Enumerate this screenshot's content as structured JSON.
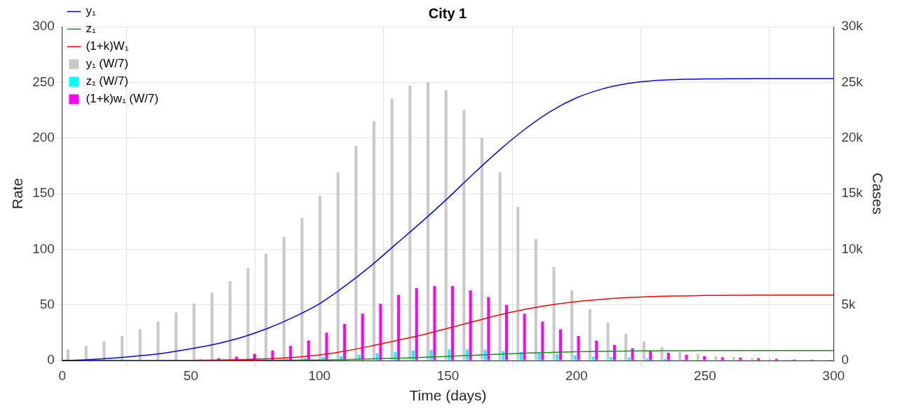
{
  "chart_data": {
    "type": "bar",
    "title": "City 1",
    "x_label": "Time (days)",
    "y_label": "Rate",
    "y2_label": "Cases",
    "xlim": [
      0,
      300
    ],
    "xticks": [
      0,
      50,
      100,
      150,
      200,
      250,
      300
    ],
    "ylim": [
      0,
      300
    ],
    "yticks": [
      0,
      50,
      100,
      150,
      200,
      250,
      300
    ],
    "y2lim": [
      0,
      30000
    ],
    "y2ticks": [
      {
        "value": 0,
        "label": "0"
      },
      {
        "value": 5000,
        "label": "5k"
      },
      {
        "value": 10000,
        "label": "10k"
      },
      {
        "value": 15000,
        "label": "15k"
      },
      {
        "value": 20000,
        "label": "20k"
      },
      {
        "value": 25000,
        "label": "25k"
      },
      {
        "value": 30000,
        "label": "30k"
      }
    ],
    "grid": true,
    "legend": "upper left",
    "series": [
      {
        "name": "y₁ (W/7)",
        "type": "bar",
        "color": "#c8c8c8",
        "x": [
          3.5,
          10.5,
          17.5,
          24.5,
          31.5,
          38.5,
          45.5,
          52.5,
          59.5,
          66.5,
          73.5,
          80.5,
          87.5,
          94.5,
          101.5,
          108.5,
          115.5,
          122.5,
          129.5,
          136.5,
          143.5,
          150.5,
          157.5,
          164.5,
          171.5,
          178.5,
          185.5,
          192.5,
          199.5,
          206.5,
          213.5,
          220.5,
          227.5,
          234.5,
          241.5,
          248.5,
          255.5,
          262.5,
          269.5,
          276.5,
          283.5,
          290.5,
          297.5
        ],
        "values": [
          10,
          13,
          17,
          22,
          28,
          35,
          43,
          51,
          61,
          71,
          83,
          96,
          111,
          128,
          148,
          169,
          193,
          215,
          235,
          247,
          250,
          243,
          225,
          200,
          169,
          138,
          109,
          84,
          63,
          46,
          34,
          24,
          17,
          12,
          8,
          6,
          4,
          3,
          2,
          1.5,
          1,
          0.7,
          0.5
        ]
      },
      {
        "name": "z₁ (W/7)",
        "type": "bar",
        "color": "#00ffff",
        "x": [
          3.5,
          10.5,
          17.5,
          24.5,
          31.5,
          38.5,
          45.5,
          52.5,
          59.5,
          66.5,
          73.5,
          80.5,
          87.5,
          94.5,
          101.5,
          108.5,
          115.5,
          122.5,
          129.5,
          136.5,
          143.5,
          150.5,
          157.5,
          164.5,
          171.5,
          178.5,
          185.5,
          192.5,
          199.5,
          206.5,
          213.5,
          220.5,
          227.5,
          234.5,
          241.5,
          248.5,
          255.5,
          262.5,
          269.5,
          276.5,
          283.5,
          290.5,
          297.5
        ],
        "values": [
          0,
          0,
          0,
          0,
          0,
          0.1,
          0.1,
          0.2,
          0.3,
          0.5,
          0.7,
          1,
          1.5,
          2,
          3,
          4,
          5,
          6.5,
          7.5,
          9,
          9.5,
          10,
          10,
          9.5,
          8.5,
          7.5,
          6.5,
          5.5,
          4.5,
          3.5,
          3,
          2.5,
          2,
          1.5,
          1,
          0.7,
          0.5,
          0.4,
          0.3,
          0.2,
          0.1,
          0.1,
          0.1
        ]
      },
      {
        "name": "(1+k)w₁ (W/7)",
        "type": "bar",
        "color": "#ff00ff",
        "x": [
          3.5,
          10.5,
          17.5,
          24.5,
          31.5,
          38.5,
          45.5,
          52.5,
          59.5,
          66.5,
          73.5,
          80.5,
          87.5,
          94.5,
          101.5,
          108.5,
          115.5,
          122.5,
          129.5,
          136.5,
          143.5,
          150.5,
          157.5,
          164.5,
          171.5,
          178.5,
          185.5,
          192.5,
          199.5,
          206.5,
          213.5,
          220.5,
          227.5,
          234.5,
          241.5,
          248.5,
          255.5,
          262.5,
          269.5,
          276.5,
          283.5,
          290.5,
          297.5
        ],
        "values": [
          0,
          0,
          0,
          0.1,
          0.2,
          0.3,
          0.5,
          1,
          2,
          3.5,
          6,
          9,
          13,
          18,
          25,
          33,
          42,
          51,
          59,
          65,
          67,
          67,
          63,
          57,
          50,
          42,
          35,
          28,
          22,
          18,
          14,
          11,
          9,
          7,
          5,
          4,
          3,
          2.5,
          2,
          1.5,
          1,
          0.8,
          0.6
        ]
      },
      {
        "name": "y₁",
        "type": "line",
        "color": "#0000ff",
        "axis": "y2",
        "line_style": "solid",
        "marker": "none",
        "x": [
          0,
          10,
          20,
          30,
          40,
          50,
          60,
          70,
          80,
          90,
          100,
          110,
          120,
          130,
          140,
          150,
          160,
          170,
          180,
          190,
          200,
          210,
          220,
          230,
          240,
          250,
          260,
          270,
          280,
          290,
          300
        ],
        "values": [
          0,
          80,
          220,
          420,
          680,
          1050,
          1500,
          2100,
          2900,
          3900,
          5100,
          6700,
          8500,
          10500,
          12500,
          14600,
          16800,
          18900,
          20800,
          22400,
          23600,
          24400,
          24900,
          25150,
          25250,
          25300,
          25320,
          25330,
          25330,
          25330,
          25330
        ]
      },
      {
        "name": "z₁",
        "type": "line",
        "color": "#1e8c1e",
        "axis": "y2",
        "line_style": "solid",
        "marker": "none",
        "x": [
          0,
          10,
          20,
          30,
          40,
          50,
          60,
          70,
          80,
          90,
          100,
          110,
          120,
          130,
          140,
          150,
          160,
          170,
          180,
          190,
          200,
          210,
          220,
          230,
          240,
          250,
          260,
          270,
          280,
          290,
          300
        ],
        "values": [
          0,
          0,
          1,
          2,
          3,
          5,
          8,
          12,
          20,
          35,
          55,
          85,
          140,
          200,
          280,
          370,
          470,
          570,
          660,
          730,
          780,
          820,
          850,
          870,
          885,
          892,
          896,
          898,
          900,
          900,
          900
        ]
      },
      {
        "name": "(1+k)W₁",
        "type": "line",
        "color": "#ff0000",
        "axis": "y2",
        "line_style": "solid",
        "marker": "none",
        "x": [
          0,
          10,
          20,
          30,
          40,
          50,
          60,
          70,
          80,
          90,
          100,
          110,
          120,
          130,
          140,
          150,
          160,
          170,
          180,
          190,
          200,
          210,
          220,
          230,
          240,
          250,
          260,
          270,
          280,
          290,
          300
        ],
        "values": [
          0,
          1,
          2,
          5,
          10,
          20,
          40,
          80,
          150,
          280,
          500,
          850,
          1300,
          1800,
          2300,
          2900,
          3500,
          4100,
          4600,
          5000,
          5300,
          5500,
          5650,
          5750,
          5800,
          5840,
          5860,
          5870,
          5875,
          5880,
          5880
        ]
      }
    ]
  }
}
